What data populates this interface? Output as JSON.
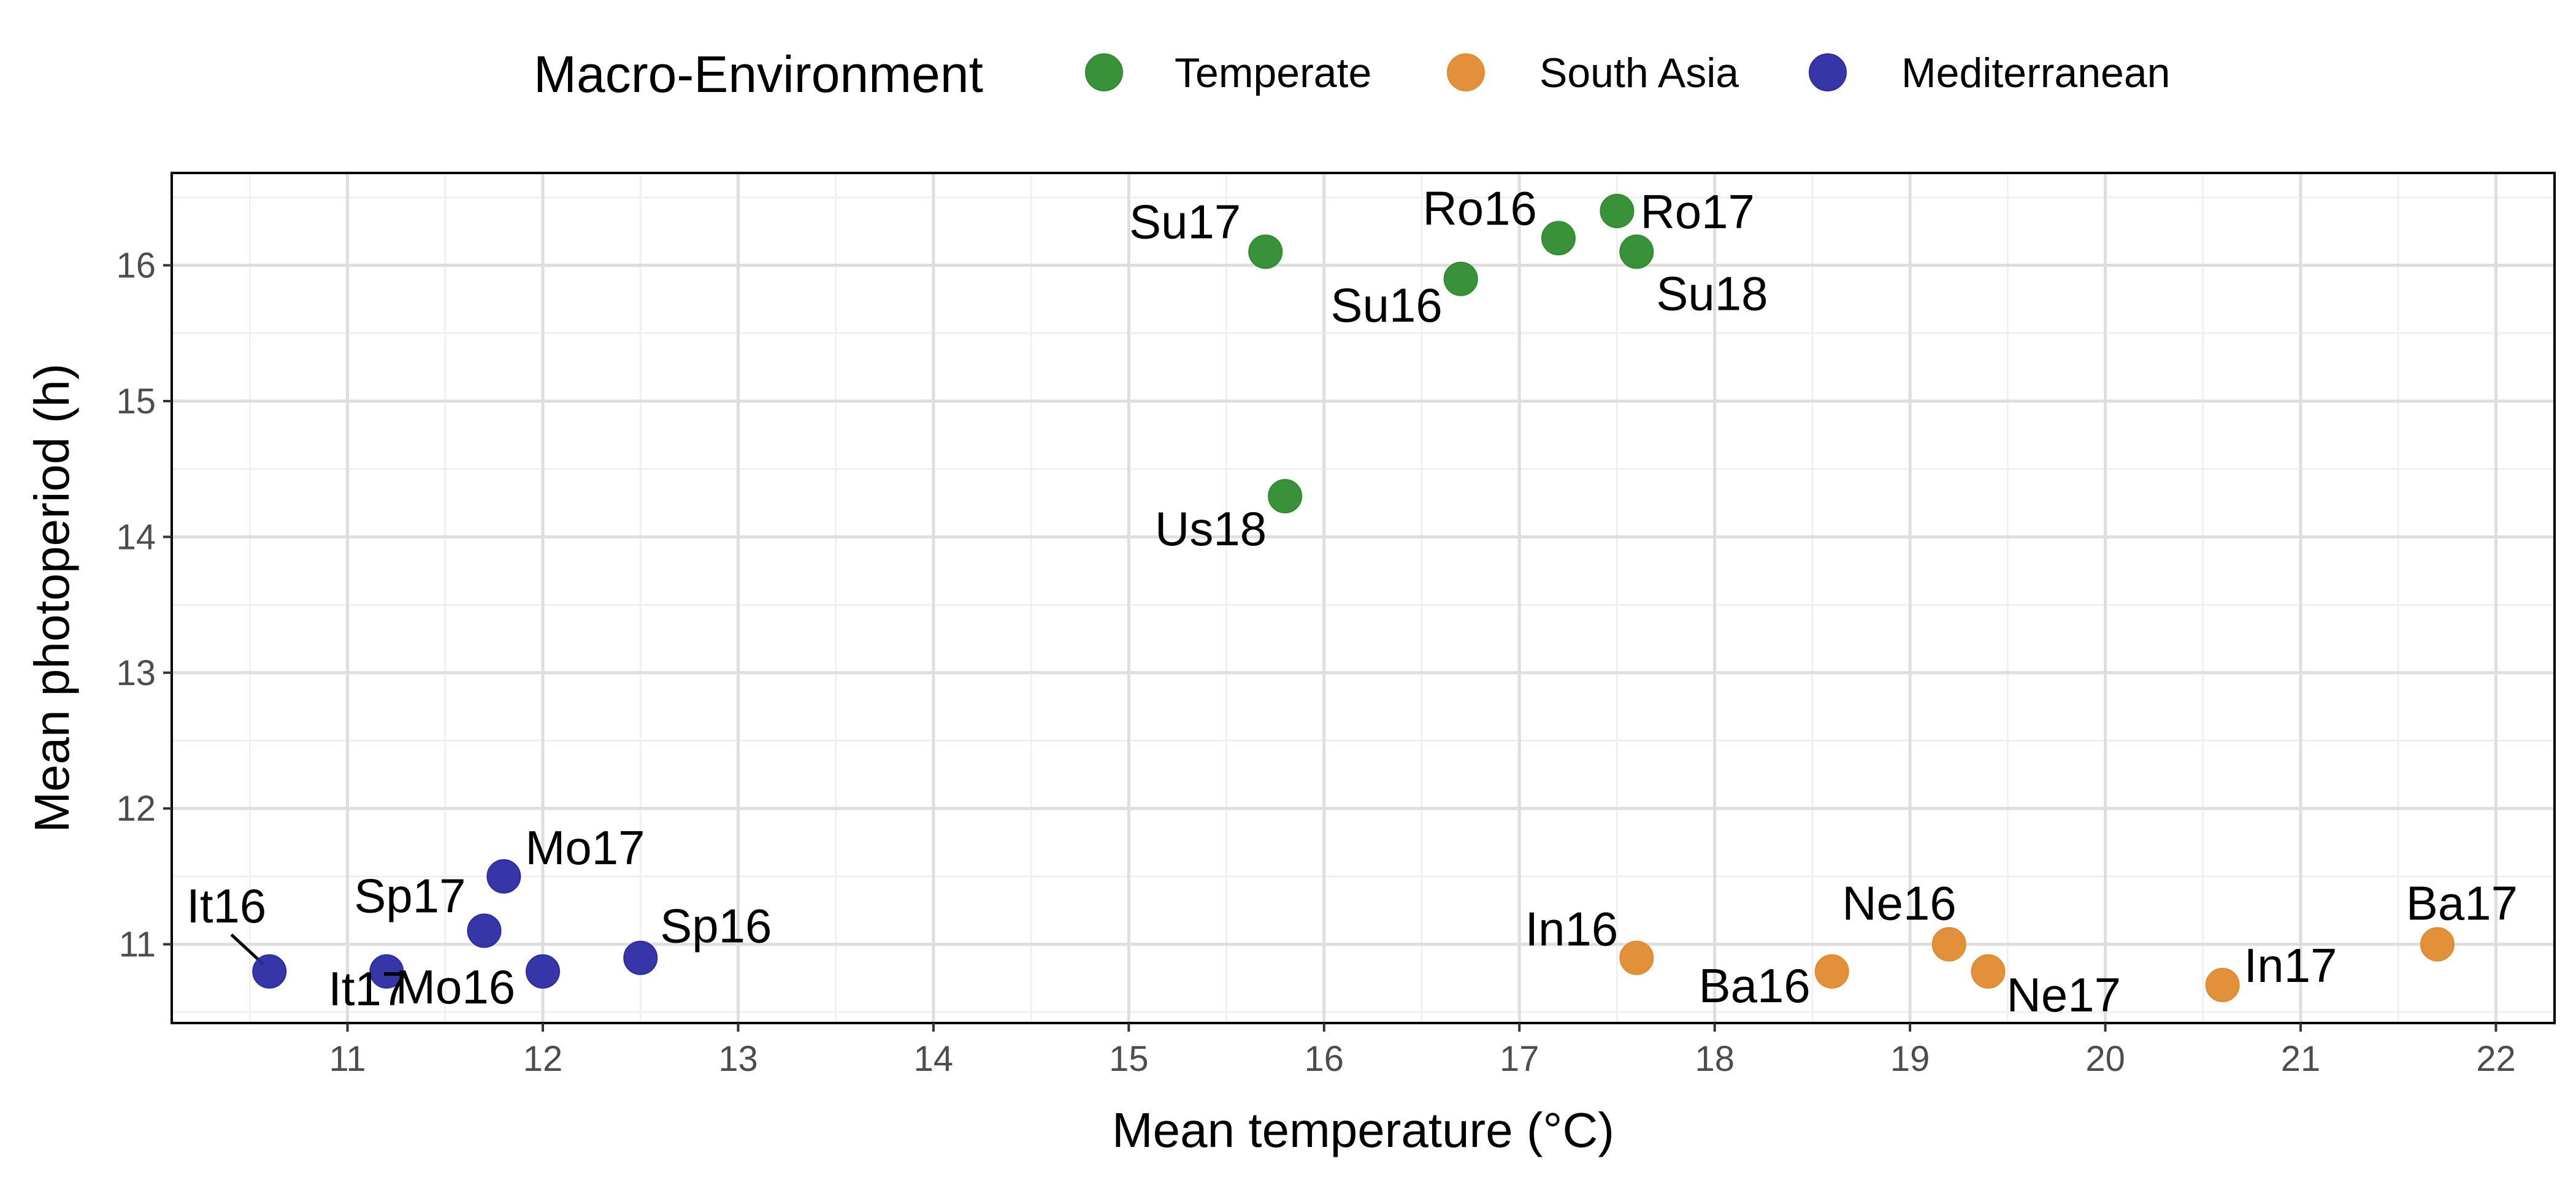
{
  "chart_data": {
    "type": "scatter",
    "xlabel": "Mean temperature (°C)",
    "ylabel": "Mean photoperiod (h)",
    "xlim": [
      10.1,
      22.3
    ],
    "ylim": [
      10.42,
      16.68
    ],
    "x_ticks": [
      11,
      12,
      13,
      14,
      15,
      16,
      17,
      18,
      19,
      20,
      21,
      22
    ],
    "y_ticks": [
      11,
      12,
      13,
      14,
      15,
      16
    ],
    "grid": true,
    "legend": {
      "title": "Macro-Environment",
      "position": "top"
    },
    "series": [
      {
        "name": "Temperate",
        "color": "#2e8b2e",
        "points": [
          {
            "label": "Su17",
            "x": 15.7,
            "y": 16.1
          },
          {
            "label": "Su16",
            "x": 16.7,
            "y": 15.9
          },
          {
            "label": "Ro16",
            "x": 17.2,
            "y": 16.2
          },
          {
            "label": "Ro17",
            "x": 17.5,
            "y": 16.4
          },
          {
            "label": "Su18",
            "x": 17.6,
            "y": 16.1
          },
          {
            "label": "Us18",
            "x": 15.8,
            "y": 14.3
          }
        ]
      },
      {
        "name": "South Asia",
        "color": "#e08a2e",
        "points": [
          {
            "label": "In16",
            "x": 17.6,
            "y": 10.9
          },
          {
            "label": "Ba16",
            "x": 18.6,
            "y": 10.8
          },
          {
            "label": "Ne16",
            "x": 19.2,
            "y": 11.0
          },
          {
            "label": "Ne17",
            "x": 19.4,
            "y": 10.8
          },
          {
            "label": "In17",
            "x": 20.6,
            "y": 10.7
          },
          {
            "label": "Ba17",
            "x": 21.7,
            "y": 11.0
          }
        ]
      },
      {
        "name": "Mediterranean",
        "color": "#2b2ba3",
        "points": [
          {
            "label": "It16",
            "x": 10.6,
            "y": 10.8
          },
          {
            "label": "It17",
            "x": 11.2,
            "y": 10.8
          },
          {
            "label": "Sp17",
            "x": 11.7,
            "y": 11.1
          },
          {
            "label": "Mo17",
            "x": 11.8,
            "y": 11.5
          },
          {
            "label": "Mo16",
            "x": 12.0,
            "y": 10.8
          },
          {
            "label": "Sp16",
            "x": 12.5,
            "y": 10.9
          }
        ]
      }
    ]
  }
}
